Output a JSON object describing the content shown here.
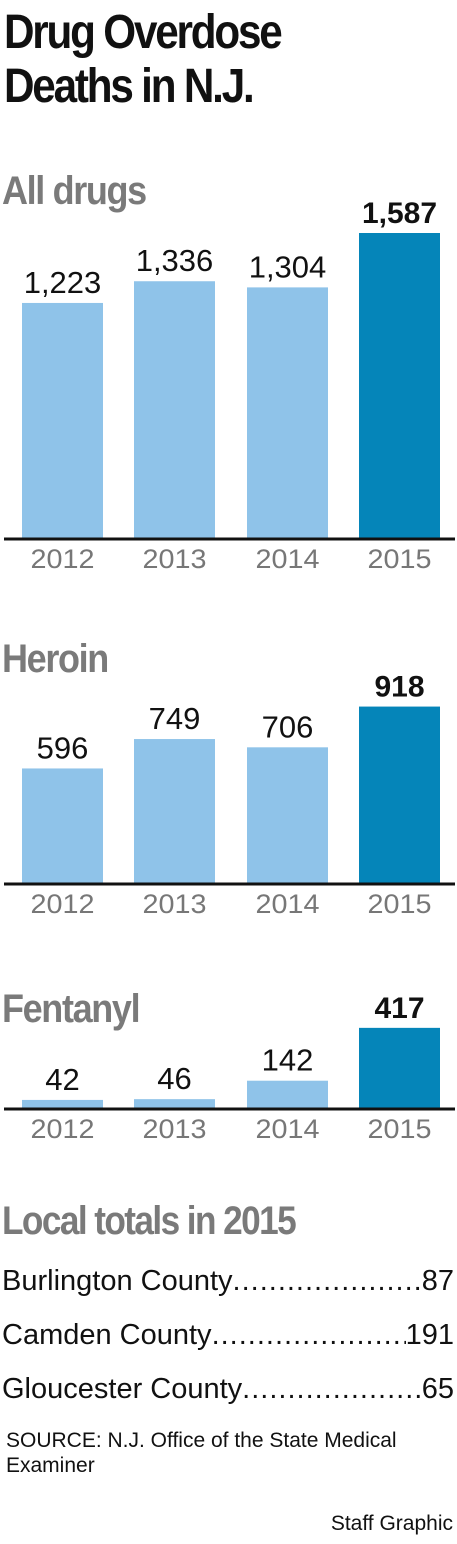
{
  "title": "Drug Overdose Deaths in N.J.",
  "colors": {
    "bar": "#8fc3e9",
    "highlight": "#0585b9",
    "axis": "#111111",
    "section_title": "#7a7a7a",
    "tick": "#777777"
  },
  "chart_data": [
    {
      "type": "bar",
      "title": "All drugs",
      "categories": [
        "2012",
        "2013",
        "2014",
        "2015"
      ],
      "values": [
        1223,
        1336,
        1304,
        1587
      ],
      "value_labels": [
        "1,223",
        "1,336",
        "1,304",
        "1,587"
      ],
      "highlight_index": 3,
      "ylim": [
        0,
        1587
      ],
      "grid": false
    },
    {
      "type": "bar",
      "title": "Heroin",
      "categories": [
        "2012",
        "2013",
        "2014",
        "2015"
      ],
      "values": [
        596,
        749,
        706,
        918
      ],
      "value_labels": [
        "596",
        "749",
        "706",
        "918"
      ],
      "highlight_index": 3,
      "ylim": [
        0,
        1587
      ],
      "grid": false
    },
    {
      "type": "bar",
      "title": "Fentanyl",
      "categories": [
        "2012",
        "2013",
        "2014",
        "2015"
      ],
      "values": [
        42,
        46,
        142,
        417
      ],
      "value_labels": [
        "42",
        "46",
        "142",
        "417"
      ],
      "highlight_index": 3,
      "ylim": [
        0,
        1587
      ],
      "grid": false
    }
  ],
  "local_totals": {
    "title": "Local totals in 2015",
    "rows": [
      {
        "county": "Burlington County",
        "value": "87"
      },
      {
        "county": "Camden County",
        "value": "191"
      },
      {
        "county": "Gloucester County",
        "value": "65"
      }
    ]
  },
  "source": "SOURCE: N.J. Office of the State Medical Examiner",
  "credit": "Staff Graphic"
}
